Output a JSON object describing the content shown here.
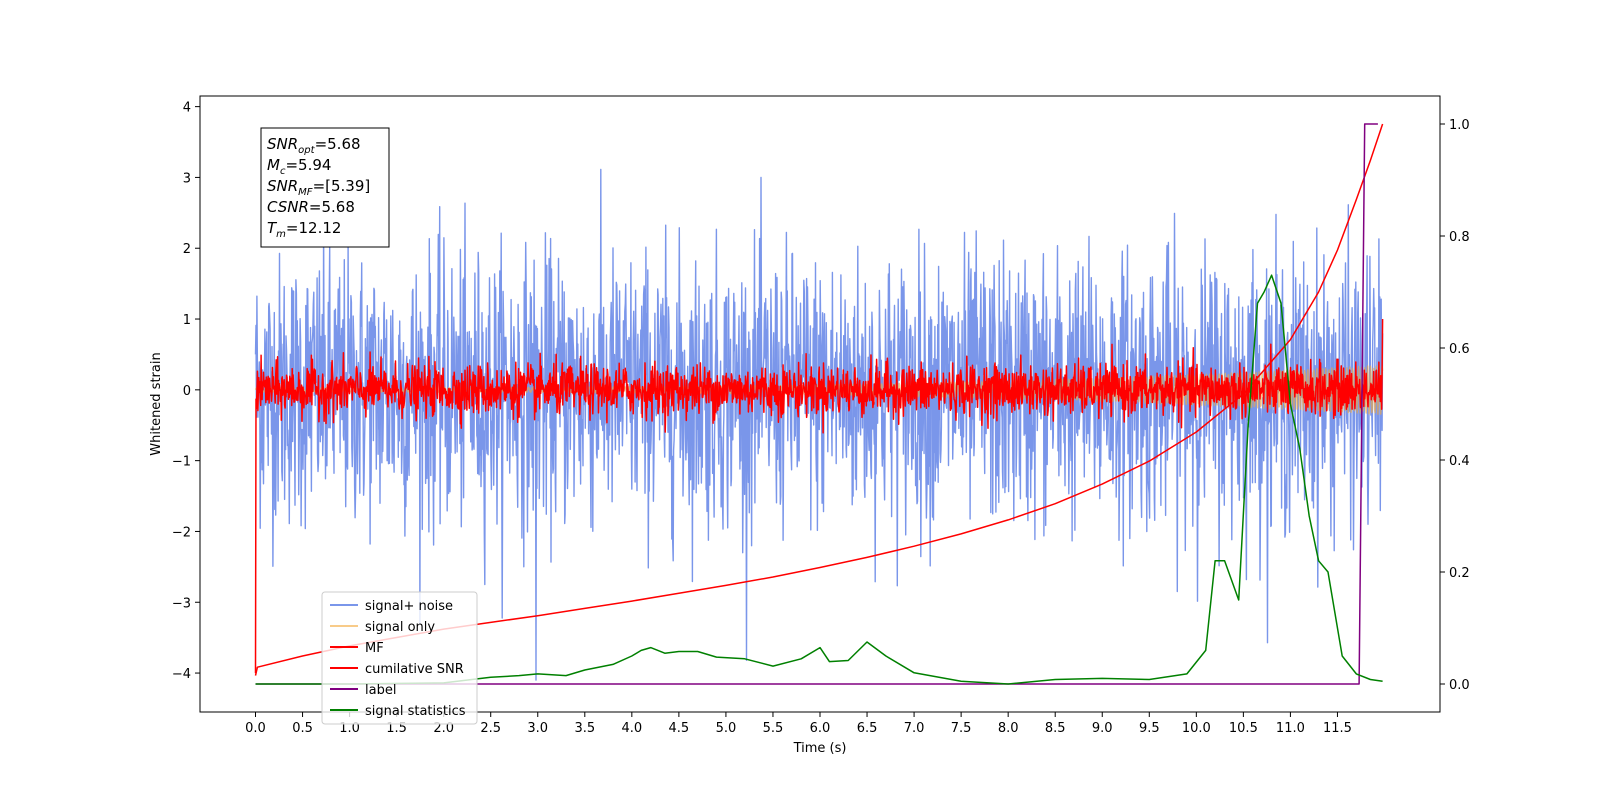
{
  "chart_data": {
    "type": "line",
    "xlabel": "Time (s)",
    "ylabel": "Whitened strain",
    "xlim": [
      -0.59,
      12.59
    ],
    "ylim": [
      -4.55,
      4.15
    ],
    "ylim_right": [
      -0.05,
      1.05
    ],
    "x_ticks": [
      "0.0",
      "0.5",
      "1.0",
      "1.5",
      "2.0",
      "2.5",
      "3.0",
      "3.5",
      "4.0",
      "4.5",
      "5.0",
      "5.5",
      "6.0",
      "6.5",
      "7.0",
      "7.5",
      "8.0",
      "8.5",
      "9.0",
      "9.5",
      "10.0",
      "10.5",
      "11.0",
      "11.5"
    ],
    "y_ticks": [
      "4",
      "3",
      "2",
      "1",
      "0",
      "−1",
      "−2",
      "−3",
      "−4"
    ],
    "y_ticks_right": [
      "1.0",
      "0.8",
      "0.6",
      "0.4",
      "0.2",
      "0.0"
    ],
    "y_tick_values": [
      4,
      3,
      2,
      1,
      0,
      -1,
      -2,
      -3,
      -4
    ],
    "y_tick_values_right": [
      1.0,
      0.8,
      0.6,
      0.4,
      0.2,
      0.0
    ],
    "grid": false,
    "legend_placement": "lower-left",
    "annotation": {
      "lines": [
        {
          "base": "SNR",
          "sub": "opt",
          "value": "=5.68"
        },
        {
          "base": "M",
          "sub": "c",
          "value": "=5.94"
        },
        {
          "base": "SNR",
          "sub": "MF",
          "value": "=[5.39]"
        },
        {
          "base": "CSNR",
          "sub": "",
          "value": "=5.68"
        },
        {
          "base": "T",
          "sub": "m",
          "value": "=12.12"
        }
      ]
    },
    "series": [
      {
        "name": "signal+ noise",
        "color": "#4169e1",
        "axis": "left",
        "kind": "noise",
        "x_start": 0.0,
        "x_end": 11.98,
        "std": 0.95,
        "spike_x": 2.98,
        "spike_y": -4.15
      },
      {
        "name": "signal only",
        "color": "#f4a93b",
        "axis": "left",
        "kind": "chirp",
        "x_start": 0.0,
        "x_end": 11.98,
        "amp_start": 0.03,
        "amp_end": 0.35
      },
      {
        "name": "MF",
        "color": "#ff0000",
        "axis": "left",
        "kind": "noise",
        "x_start": 0.0,
        "x_end": 11.98,
        "std": 0.18
      },
      {
        "name": "cumilative SNR",
        "color": "#ff0000",
        "axis": "right",
        "x": [
          0.0,
          0.02,
          0.5,
          1.0,
          1.5,
          2.0,
          2.5,
          3.0,
          3.5,
          4.0,
          4.5,
          5.0,
          5.5,
          6.0,
          6.5,
          7.0,
          7.5,
          8.0,
          8.5,
          9.0,
          9.5,
          10.0,
          10.5,
          11.0,
          11.3,
          11.5,
          11.7,
          11.85,
          11.98
        ],
        "y": [
          0.015,
          0.03,
          0.05,
          0.068,
          0.083,
          0.098,
          0.11,
          0.122,
          0.135,
          0.148,
          0.162,
          0.176,
          0.191,
          0.208,
          0.226,
          0.246,
          0.268,
          0.293,
          0.322,
          0.357,
          0.398,
          0.45,
          0.518,
          0.615,
          0.7,
          0.775,
          0.865,
          0.935,
          1.0
        ]
      },
      {
        "name": "label",
        "color": "#800080",
        "axis": "right",
        "x": [
          0.0,
          11.73,
          11.79,
          11.93
        ],
        "y": [
          0.0,
          0.0,
          1.0,
          1.0
        ]
      },
      {
        "name": "signal statistics",
        "color": "#008000",
        "axis": "right",
        "x": [
          0.0,
          1.0,
          2.0,
          2.5,
          2.8,
          3.0,
          3.3,
          3.5,
          3.8,
          4.0,
          4.1,
          4.2,
          4.35,
          4.5,
          4.7,
          4.9,
          5.2,
          5.5,
          5.8,
          6.0,
          6.1,
          6.3,
          6.5,
          6.7,
          7.0,
          7.5,
          8.0,
          8.5,
          9.0,
          9.5,
          9.9,
          10.1,
          10.2,
          10.3,
          10.45,
          10.55,
          10.65,
          10.72,
          10.8,
          10.9,
          11.0,
          11.1,
          11.2,
          11.3,
          11.4,
          11.55,
          11.7,
          11.85,
          11.98
        ],
        "y": [
          0.0,
          0.0,
          0.002,
          0.012,
          0.015,
          0.018,
          0.015,
          0.025,
          0.035,
          0.05,
          0.06,
          0.065,
          0.055,
          0.058,
          0.058,
          0.048,
          0.045,
          0.032,
          0.045,
          0.065,
          0.04,
          0.042,
          0.075,
          0.05,
          0.02,
          0.005,
          0.0,
          0.008,
          0.01,
          0.008,
          0.018,
          0.06,
          0.22,
          0.22,
          0.15,
          0.46,
          0.68,
          0.7,
          0.73,
          0.68,
          0.5,
          0.42,
          0.3,
          0.22,
          0.2,
          0.05,
          0.018,
          0.008,
          0.005
        ]
      }
    ]
  }
}
